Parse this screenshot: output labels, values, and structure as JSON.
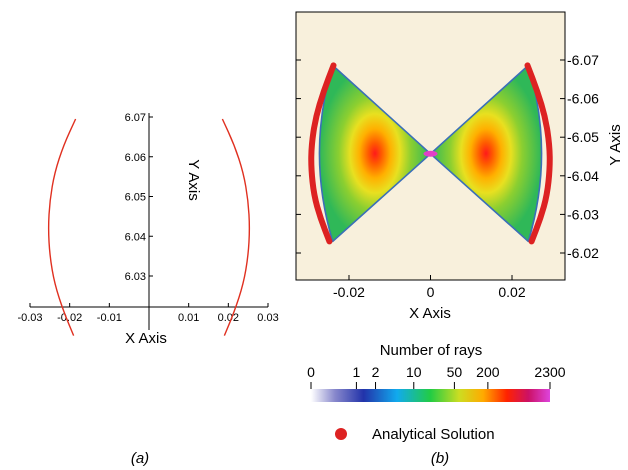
{
  "chart_data": [
    {
      "type": "line",
      "panel_label": "(a)",
      "xlabel": "X Axis",
      "ylabel": "Y Axis",
      "xlim": [
        -0.03,
        0.03
      ],
      "ylim": [
        6.02,
        6.07
      ],
      "x_ticks": [
        "-0.03",
        "-0.02",
        "-0.01",
        "0.01",
        "0.02",
        "0.03"
      ],
      "x_tick_values": [
        -0.03,
        -0.02,
        -0.01,
        0.01,
        0.02,
        0.03
      ],
      "y_ticks": [
        "6.03",
        "6.04",
        "6.05",
        "6.06",
        "6.07"
      ],
      "y_tick_values": [
        6.03,
        6.04,
        6.05,
        6.06,
        6.07
      ],
      "series_color": "#e03020",
      "series": [
        {
          "x": [
            -0.0185,
            -0.0215,
            -0.0238,
            -0.025,
            -0.0254,
            -0.025,
            -0.0238,
            -0.0215,
            -0.019
          ],
          "y": [
            6.0695,
            6.063,
            6.056,
            6.049,
            6.042,
            6.035,
            6.028,
            6.021,
            6.015
          ]
        },
        {
          "x": [
            0.0185,
            0.0215,
            0.0238,
            0.025,
            0.0254,
            0.025,
            0.0238,
            0.0215,
            0.019
          ],
          "y": [
            6.0695,
            6.063,
            6.056,
            6.049,
            6.042,
            6.035,
            6.028,
            6.021,
            6.015
          ]
        }
      ]
    },
    {
      "type": "heatmap",
      "panel_label": "(b)",
      "xlabel": "X Axis",
      "ylabel": "Y Axis",
      "xlim": [
        -0.033,
        0.033
      ],
      "ylim": [
        6.016,
        6.078
      ],
      "x_ticks": [
        "-0.02",
        "0",
        "0.02"
      ],
      "x_tick_values": [
        -0.02,
        0,
        0.02
      ],
      "y_ticks": [
        "6.02",
        "6.03",
        "6.04",
        "6.05",
        "6.06",
        "6.07"
      ],
      "y_tick_values": [
        6.02,
        6.03,
        6.04,
        6.05,
        6.06,
        6.07
      ],
      "background_color": "#f8f0dc",
      "ray_distribution": {
        "center": [
          0,
          6.0457
        ],
        "upper_wing_ends": [
          [
            -0.024,
            6.0686
          ],
          [
            0.024,
            6.0686
          ]
        ],
        "lower_wing_ends": [
          [
            -0.024,
            6.023
          ],
          [
            0.024,
            6.023
          ]
        ],
        "outer_edge_bulge_x": 0.0305
      },
      "colorbar": {
        "title": "Number of rays",
        "tick_labels": [
          "0",
          "1",
          "2",
          "10",
          "50",
          "200",
          "2300"
        ],
        "tick_fractions": [
          0.0,
          0.19,
          0.27,
          0.43,
          0.6,
          0.74,
          1.0
        ],
        "colors": [
          "#ffffff",
          "#8888cc",
          "#2233aa",
          "#11aaee",
          "#22cc44",
          "#ccdd22",
          "#ffaa00",
          "#ff2200",
          "#cc1166",
          "#dd44dd"
        ]
      },
      "legend": {
        "label": "Analytical Solution",
        "marker_color": "#dd2222"
      },
      "analytical_solution": {
        "points_left": [
          [
            -0.0238,
            6.0686
          ],
          [
            -0.0262,
            6.062
          ],
          [
            -0.0282,
            6.055
          ],
          [
            -0.0292,
            6.048
          ],
          [
            -0.0293,
            6.042
          ],
          [
            -0.0286,
            6.035
          ],
          [
            -0.027,
            6.029
          ],
          [
            -0.0248,
            6.023
          ]
        ],
        "points_right": [
          [
            0.0238,
            6.0686
          ],
          [
            0.0262,
            6.062
          ],
          [
            0.0282,
            6.055
          ],
          [
            0.0292,
            6.048
          ],
          [
            0.0293,
            6.042
          ],
          [
            0.0286,
            6.035
          ],
          [
            0.027,
            6.029
          ],
          [
            0.0248,
            6.023
          ]
        ]
      }
    }
  ]
}
